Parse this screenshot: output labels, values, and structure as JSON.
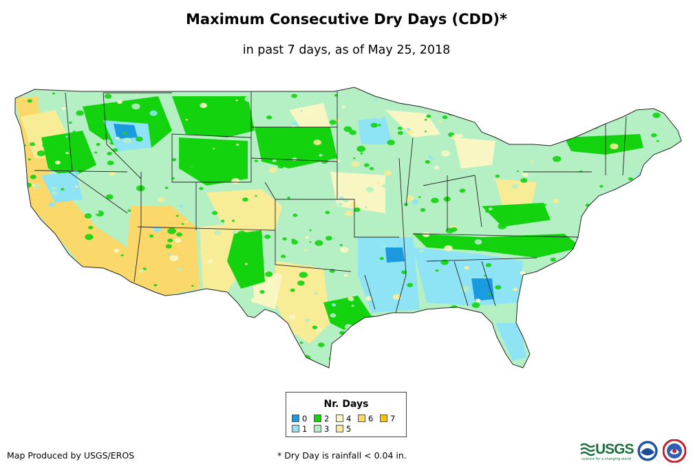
{
  "header": {
    "title": "Maximum Consecutive Dry Days (CDD)*",
    "subtitle": "in past 7 days, as of May 25, 2018"
  },
  "legend": {
    "title": "Nr. Days",
    "items": [
      {
        "label": "0",
        "color": "#1a9be0"
      },
      {
        "label": "1",
        "color": "#8ee4f5"
      },
      {
        "label": "2",
        "color": "#13d30f"
      },
      {
        "label": "3",
        "color": "#b5f0c4"
      },
      {
        "label": "4",
        "color": "#f8f7c3"
      },
      {
        "label": "5",
        "color": "#f8ec96"
      },
      {
        "label": "6",
        "color": "#fbd86a"
      },
      {
        "label": "7",
        "color": "#fbc40a"
      }
    ]
  },
  "footer": {
    "credit": "Map Produced by USGS/EROS",
    "footnote": "* Dry Day is rainfall < 0.04 in."
  },
  "logos": {
    "usgs_text": "USGS",
    "usgs_tagline": "science for a changing world",
    "noaa_icon": "noaa-logo-icon",
    "nws_icon": "nws-logo-icon"
  },
  "map": {
    "region": "contiguous-united-states",
    "base_color": "#b5f0c4",
    "border_color": "#222222"
  }
}
